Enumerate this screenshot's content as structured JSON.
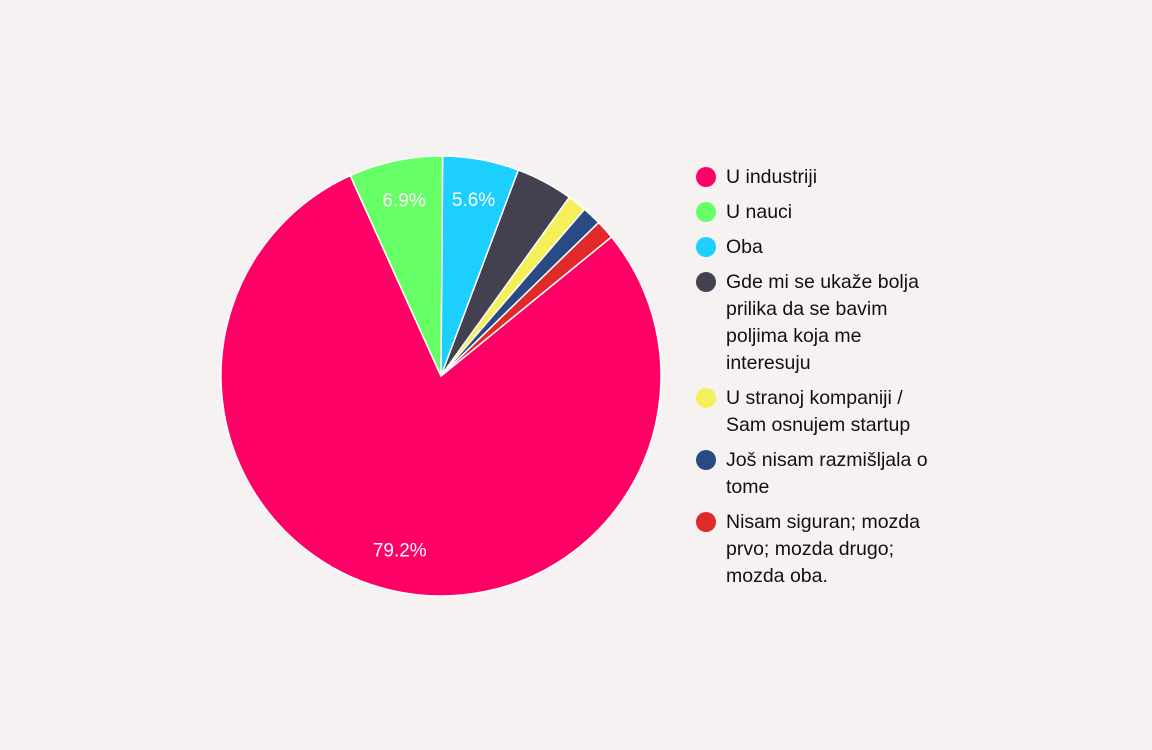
{
  "chart_data": {
    "type": "pie",
    "slices": [
      {
        "label": "U industriji",
        "value": 79.2,
        "color": "#ff0066",
        "data_label": "79.2%"
      },
      {
        "label": "U nauci",
        "value": 6.9,
        "color": "#66ff66",
        "data_label": "6.9%"
      },
      {
        "label": "Oba",
        "value": 5.6,
        "color": "#1ccfff",
        "data_label": "5.6%"
      },
      {
        "label": "Gde mi se ukaže bolja prilika da se bavim poljima koja me interesuju",
        "value": 4.2,
        "color": "#43404f",
        "data_label": ""
      },
      {
        "label": "U stranoj kompaniji / Sam osnujem startup",
        "value": 1.4,
        "color": "#f5ef5a",
        "data_label": ""
      },
      {
        "label": "Još nisam razmišljala o tome",
        "value": 1.4,
        "color": "#2a4a84",
        "data_label": ""
      },
      {
        "label": "Nisam siguran; mozda prvo; mozda drugo; mozda oba.",
        "value": 1.4,
        "color": "#e02a2a",
        "data_label": ""
      }
    ],
    "legend_position": "right"
  }
}
